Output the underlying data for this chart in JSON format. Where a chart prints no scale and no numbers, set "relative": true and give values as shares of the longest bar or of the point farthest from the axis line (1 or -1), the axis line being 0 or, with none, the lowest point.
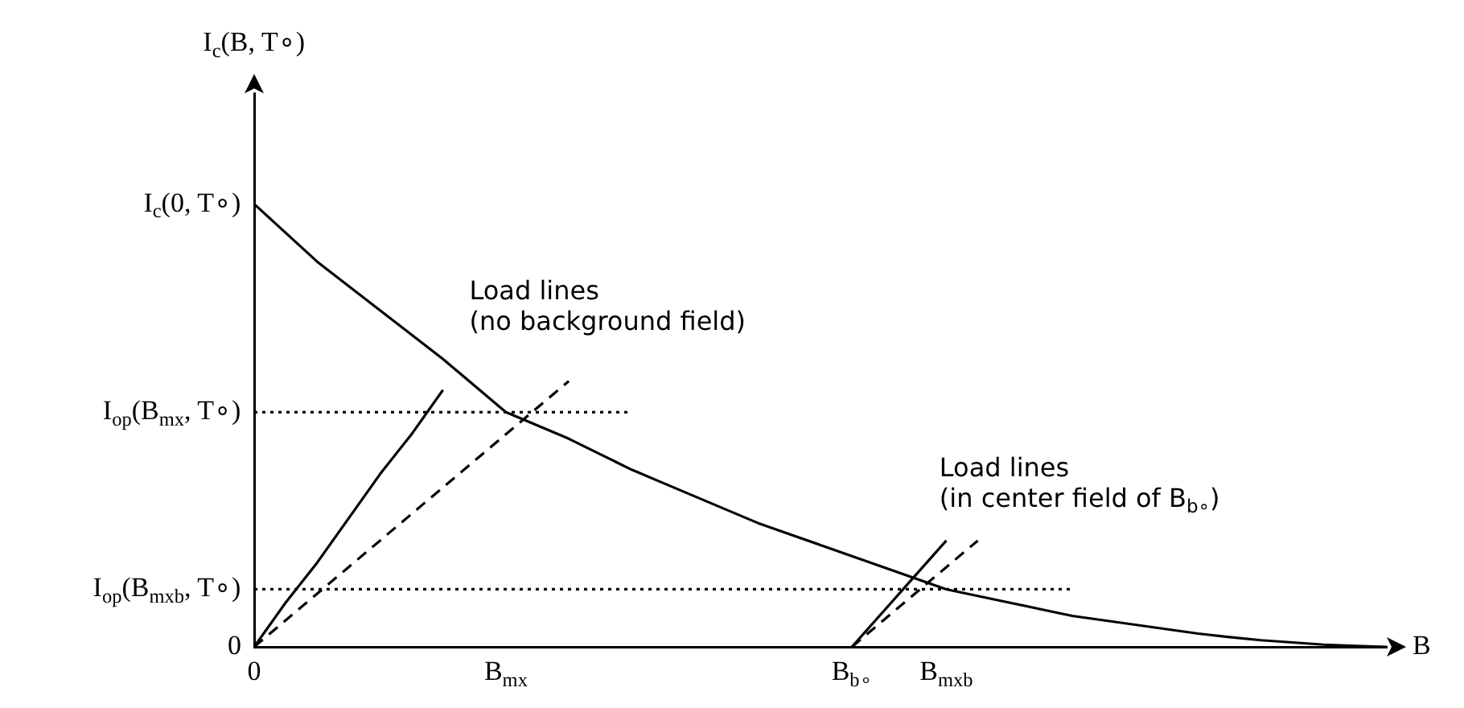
{
  "chart_data": {
    "type": "line",
    "relative": true,
    "xlabel": "B",
    "marker": "none",
    "categories": [
      "0",
      null,
      null,
      null,
      null,
      null,
      null,
      null,
      "B$_{mx}$",
      null,
      null,
      null,
      null,
      null,
      null,
      null,
      null,
      null,
      null,
      "B$_{b∘}$",
      null,
      null,
      "B$_{mxb}$",
      null,
      null,
      null,
      null,
      null,
      null,
      null,
      null,
      null,
      null,
      null,
      null,
      null,
      null
    ],
    "series": [
      {
        "color": "#000000",
        "line_style": "solid",
        "values": [
          1,
          0.935,
          0.87,
          0.815,
          0.76,
          0.705,
          0.65,
          0.59,
          0.53,
          0.5,
          0.47,
          0.435,
          0.4,
          0.37,
          0.34,
          0.31,
          0.28,
          0.255,
          0.23,
          0.205,
          0.18,
          0.155,
          0.13,
          0.115,
          0.1,
          0.085,
          0.07,
          0.06,
          0.05,
          0.04,
          0.03,
          0.022,
          0.015,
          0.01,
          0.005,
          0.002,
          0
        ]
      },
      {
        "color": "#000000",
        "line_style": "solid",
        "values": [
          0,
          0.1,
          0.19,
          0.29,
          0.39,
          0.48,
          0.58,
          null,
          null,
          null,
          null,
          null,
          null,
          null,
          null,
          null,
          null,
          null,
          null,
          null,
          null,
          null,
          null,
          null,
          null,
          null,
          null,
          null,
          null,
          null,
          null,
          null,
          null,
          null,
          null,
          null,
          null
        ]
      },
      {
        "color": "#000000",
        "line_style": "dashed",
        "values": [
          0,
          0.06,
          0.12,
          0.18,
          0.24,
          0.3,
          0.36,
          0.42,
          0.48,
          0.54,
          0.6,
          null,
          null,
          null,
          null,
          null,
          null,
          null,
          null,
          null,
          null,
          null,
          null,
          null,
          null,
          null,
          null,
          null,
          null,
          null,
          null,
          null,
          null,
          null,
          null,
          null,
          null
        ]
      },
      {
        "color": "#000000",
        "line_style": "solid",
        "values": [
          null,
          null,
          null,
          null,
          null,
          null,
          null,
          null,
          null,
          null,
          null,
          null,
          null,
          null,
          null,
          null,
          null,
          null,
          null,
          0,
          0.08,
          0.16,
          0.24,
          null,
          null,
          null,
          null,
          null,
          null,
          null,
          null,
          null,
          null,
          null,
          null,
          null,
          null
        ]
      },
      {
        "color": "#000000",
        "line_style": "dashed",
        "values": [
          null,
          null,
          null,
          null,
          null,
          null,
          null,
          null,
          null,
          null,
          null,
          null,
          null,
          null,
          null,
          null,
          null,
          null,
          null,
          0,
          0.06,
          0.12,
          0.18,
          0.24,
          null,
          null,
          null,
          null,
          null,
          null,
          null,
          null,
          null,
          null,
          null,
          null,
          null
        ]
      },
      {
        "color": "#000000",
        "line_style": "dotted",
        "values": [
          0.53,
          0.53,
          0.53,
          0.53,
          0.53,
          0.53,
          0.53,
          0.53,
          0.53,
          0.53,
          0.53,
          0.53,
          0.53,
          null,
          null,
          null,
          null,
          null,
          null,
          null,
          null,
          null,
          null,
          null,
          null,
          null,
          null,
          null,
          null,
          null,
          null,
          null,
          null,
          null,
          null,
          null,
          null
        ]
      },
      {
        "color": "#000000",
        "line_style": "dotted",
        "values": [
          0.13,
          0.13,
          0.13,
          0.13,
          0.13,
          0.13,
          0.13,
          0.13,
          0.13,
          0.13,
          0.13,
          0.13,
          0.13,
          0.13,
          0.13,
          0.13,
          0.13,
          0.13,
          0.13,
          0.13,
          0.13,
          0.13,
          0.13,
          0.13,
          0.13,
          0.13,
          0.13,
          null,
          null,
          null,
          null,
          null,
          null,
          null,
          null,
          null,
          null
        ]
      }
    ],
    "annotations": [
      "Load lines\n(no background field)",
      "Load lines\n(in center field of B$_{b∘}$)",
      "I$_{c}$(B, T∘)",
      {
        "text": "0",
        "x": "0",
        "y": 0
      },
      {
        "text": "I$_{op}$(B$_{mxb}$, T∘)",
        "x": "0",
        "y": 0.13
      },
      {
        "text": "I$_{op}$(B$_{mx}$, T∘)",
        "x": "0",
        "y": 0.53
      },
      {
        "text": "I$_{c}$(0, T∘)",
        "x": "0",
        "y": 1
      }
    ]
  }
}
